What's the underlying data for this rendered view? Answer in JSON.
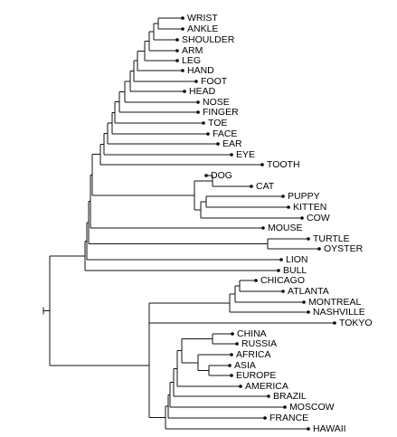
{
  "colors": {
    "line": "#111111",
    "text": "#000000",
    "background": "#ffffff"
  },
  "dendrogram": {
    "orientation": "left-to-right",
    "leaves": [
      "WRIST",
      "ANKLE",
      "SHOULDER",
      "ARM",
      "LEG",
      "HAND",
      "FOOT",
      "HEAD",
      "NOSE",
      "FINGER",
      "TOE",
      "FACE",
      "EAR",
      "EYE",
      "TOOTH",
      "DOG",
      "CAT",
      "PUPPY",
      "KITTEN",
      "COW",
      "MOUSE",
      "TURTLE",
      "OYSTER",
      "LION",
      "BULL",
      "CHICAGO",
      "ATLANTA",
      "MONTREAL",
      "NASHVILLE",
      "TOKYO",
      "CHINA",
      "RUSSIA",
      "AFRICA",
      "ASIA",
      "EUROPE",
      "AMERICA",
      "BRAZIL",
      "MOSCOW",
      "FRANCE",
      "HAWAII"
    ]
  }
}
